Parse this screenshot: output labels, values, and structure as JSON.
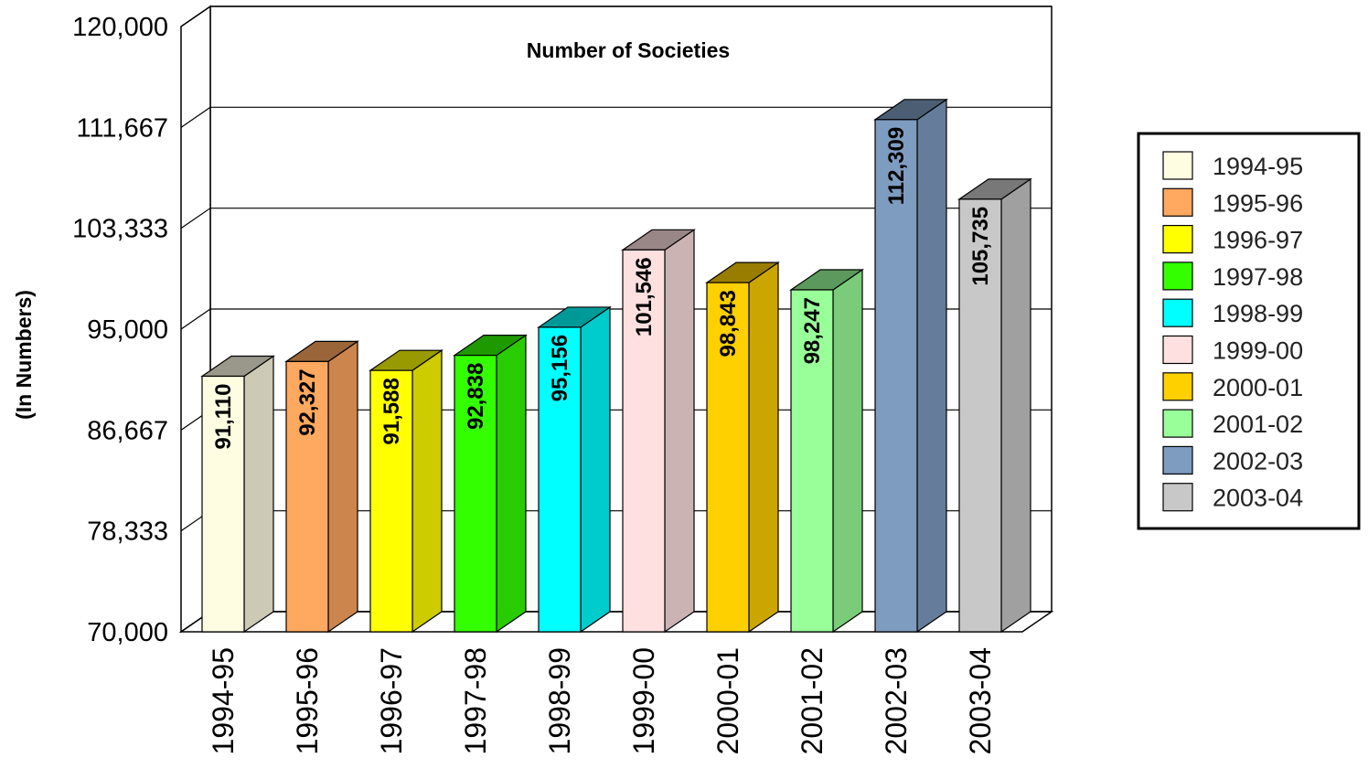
{
  "chart_data": {
    "type": "bar",
    "title": "Number of Societies",
    "ylabel": "(In Numbers)",
    "xlabel": "",
    "ylim": [
      70000,
      120000
    ],
    "yticks": [
      "70,000",
      "78,333",
      "86,667",
      "95,000",
      "103,333",
      "111,667",
      "120,000"
    ],
    "ytick_values": [
      70000,
      78333,
      86667,
      95000,
      103333,
      111667,
      120000
    ],
    "categories": [
      "1994-95",
      "1995-96",
      "1996-97",
      "1997-98",
      "1998-99",
      "1999-00",
      "2000-01",
      "2001-02",
      "2002-03",
      "2003-04"
    ],
    "values": [
      91110,
      92327,
      91588,
      92838,
      95156,
      101546,
      98843,
      98247,
      112309,
      105735
    ],
    "value_labels": [
      "91,110",
      "92,327",
      "91,588",
      "92,838",
      "95,156",
      "101,546",
      "98,843",
      "98,247",
      "112,309",
      "105,735"
    ],
    "colors": [
      "#FFFDE1",
      "#FFA860",
      "#FFFF00",
      "#33FF00",
      "#00FFFF",
      "#FFE0E0",
      "#FFD000",
      "#99FF99",
      "#7E9CC0",
      "#C8C8C8"
    ],
    "side_colors": [
      "#CCCAB4",
      "#CC864D",
      "#CCCC00",
      "#29CC00",
      "#00CCCC",
      "#CCB3B3",
      "#CCA600",
      "#7ACC7A",
      "#657D9A",
      "#A0A0A0"
    ],
    "top_colors": [
      "#99988A",
      "#996539",
      "#999900",
      "#1F9900",
      "#009999",
      "#998686",
      "#997D00",
      "#5C995C",
      "#4C5E73",
      "#787878"
    ],
    "legend": {
      "position": "right",
      "entries": [
        "1994-95",
        "1995-96",
        "1996-97",
        "1997-98",
        "1998-99",
        "1999-00",
        "2000-01",
        "2001-02",
        "2002-03",
        "2003-04"
      ]
    },
    "grid": true
  }
}
